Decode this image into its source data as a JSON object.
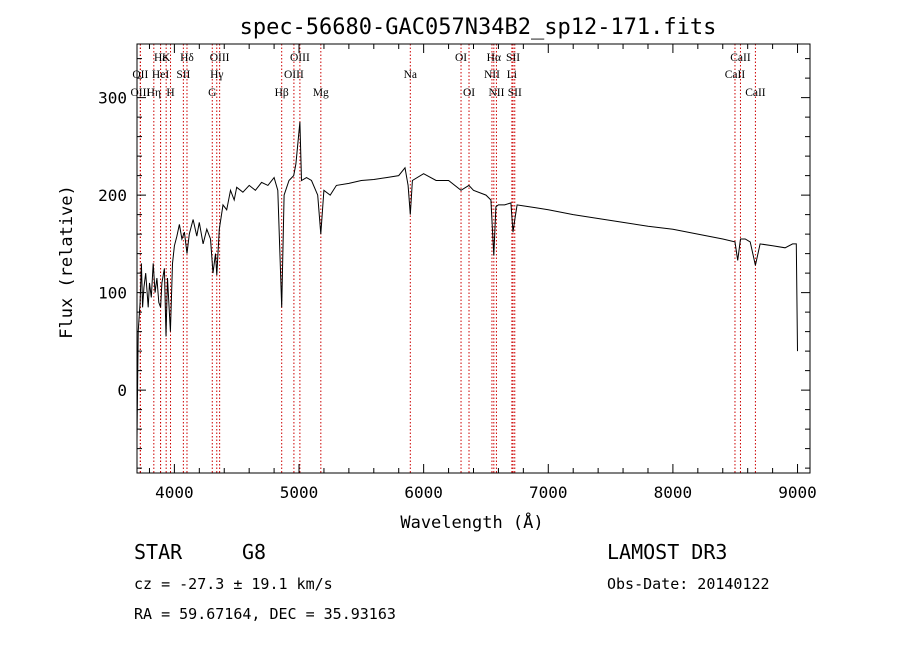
{
  "chart_data": {
    "type": "line",
    "title": "spec-56680-GAC057N34B2_sp12-171.fits",
    "xlabel": "Wavelength (Å)",
    "ylabel": "Flux (relative)",
    "xlim": [
      3700,
      9100
    ],
    "ylim": [
      -85,
      355
    ],
    "x_ticks": [
      4000,
      5000,
      6000,
      7000,
      8000,
      9000
    ],
    "x_tick_labels": [
      "4000",
      "5000",
      "6000",
      "7000",
      "8000",
      "9000"
    ],
    "y_ticks": [
      0,
      100,
      200,
      300
    ],
    "y_tick_labels": [
      "0",
      "100",
      "200",
      "300"
    ],
    "line_color": "#cc0000",
    "spectrum": [
      [
        3700,
        -50
      ],
      [
        3710,
        60
      ],
      [
        3725,
        90
      ],
      [
        3735,
        130
      ],
      [
        3745,
        85
      ],
      [
        3755,
        105
      ],
      [
        3770,
        120
      ],
      [
        3790,
        85
      ],
      [
        3800,
        110
      ],
      [
        3815,
        95
      ],
      [
        3830,
        130
      ],
      [
        3845,
        100
      ],
      [
        3860,
        115
      ],
      [
        3875,
        90
      ],
      [
        3889,
        85
      ],
      [
        3900,
        110
      ],
      [
        3920,
        125
      ],
      [
        3933,
        55
      ],
      [
        3945,
        115
      ],
      [
        3968,
        60
      ],
      [
        3985,
        130
      ],
      [
        4000,
        148
      ],
      [
        4020,
        158
      ],
      [
        4040,
        170
      ],
      [
        4060,
        155
      ],
      [
        4080,
        162
      ],
      [
        4101,
        140
      ],
      [
        4120,
        160
      ],
      [
        4150,
        175
      ],
      [
        4180,
        158
      ],
      [
        4200,
        172
      ],
      [
        4230,
        150
      ],
      [
        4260,
        165
      ],
      [
        4290,
        155
      ],
      [
        4310,
        120
      ],
      [
        4330,
        140
      ],
      [
        4340,
        118
      ],
      [
        4360,
        165
      ],
      [
        4390,
        190
      ],
      [
        4420,
        185
      ],
      [
        4450,
        205
      ],
      [
        4480,
        195
      ],
      [
        4500,
        208
      ],
      [
        4550,
        203
      ],
      [
        4600,
        210
      ],
      [
        4650,
        205
      ],
      [
        4700,
        213
      ],
      [
        4750,
        210
      ],
      [
        4800,
        218
      ],
      [
        4830,
        205
      ],
      [
        4861,
        85
      ],
      [
        4880,
        200
      ],
      [
        4920,
        215
      ],
      [
        4957,
        220
      ],
      [
        4975,
        232
      ],
      [
        5007,
        275
      ],
      [
        5020,
        215
      ],
      [
        5060,
        218
      ],
      [
        5100,
        215
      ],
      [
        5150,
        200
      ],
      [
        5175,
        160
      ],
      [
        5200,
        205
      ],
      [
        5250,
        200
      ],
      [
        5300,
        210
      ],
      [
        5400,
        212
      ],
      [
        5500,
        215
      ],
      [
        5600,
        216
      ],
      [
        5700,
        218
      ],
      [
        5800,
        220
      ],
      [
        5850,
        228
      ],
      [
        5875,
        210
      ],
      [
        5893,
        180
      ],
      [
        5910,
        215
      ],
      [
        6000,
        222
      ],
      [
        6100,
        215
      ],
      [
        6200,
        215
      ],
      [
        6300,
        205
      ],
      [
        6363,
        210
      ],
      [
        6400,
        205
      ],
      [
        6500,
        200
      ],
      [
        6540,
        195
      ],
      [
        6563,
        138
      ],
      [
        6580,
        188
      ],
      [
        6600,
        190
      ],
      [
        6650,
        190
      ],
      [
        6700,
        192
      ],
      [
        6717,
        162
      ],
      [
        6731,
        175
      ],
      [
        6750,
        190
      ],
      [
        6800,
        189
      ],
      [
        6900,
        187
      ],
      [
        7000,
        185
      ],
      [
        7200,
        180
      ],
      [
        7400,
        176
      ],
      [
        7600,
        172
      ],
      [
        7800,
        168
      ],
      [
        8000,
        165
      ],
      [
        8200,
        160
      ],
      [
        8400,
        155
      ],
      [
        8498,
        152
      ],
      [
        8520,
        133
      ],
      [
        8542,
        155
      ],
      [
        8580,
        155
      ],
      [
        8620,
        152
      ],
      [
        8662,
        128
      ],
      [
        8700,
        150
      ],
      [
        8800,
        148
      ],
      [
        8900,
        146
      ],
      [
        8960,
        150
      ],
      [
        8990,
        150
      ],
      [
        9000,
        40
      ]
    ],
    "lines": [
      {
        "name": "Hε",
        "wavelength": 3889,
        "label_row": 1
      },
      {
        "name": "HeI",
        "wavelength": 3889,
        "label_row": 2
      },
      {
        "name": "OII",
        "wavelength": 3727,
        "label_row": 2
      },
      {
        "name": "OIII",
        "wavelength": 3727,
        "label_row": 3
      },
      {
        "name": "Hη",
        "wavelength": 3835,
        "label_row": 3
      },
      {
        "name": "K",
        "wavelength": 3934,
        "label_row": 1
      },
      {
        "name": "H",
        "wavelength": 3969,
        "label_row": 3
      },
      {
        "name": "Hδ",
        "wavelength": 4101,
        "label_row": 1
      },
      {
        "name": "SII",
        "wavelength": 4072,
        "label_row": 2
      },
      {
        "name": "OIII",
        "wavelength": 4363,
        "label_row": 1
      },
      {
        "name": "Hγ",
        "wavelength": 4340,
        "label_row": 2
      },
      {
        "name": "G",
        "wavelength": 4304,
        "label_row": 3
      },
      {
        "name": "Hβ",
        "wavelength": 4861,
        "label_row": 3
      },
      {
        "name": "OIII",
        "wavelength": 5007,
        "label_row": 1
      },
      {
        "name": "OIII",
        "wavelength": 4959,
        "label_row": 2
      },
      {
        "name": "Mg",
        "wavelength": 5175,
        "label_row": 3
      },
      {
        "name": "Na",
        "wavelength": 5893,
        "label_row": 2
      },
      {
        "name": "OI",
        "wavelength": 6300,
        "label_row": 1
      },
      {
        "name": "OI",
        "wavelength": 6364,
        "label_row": 3
      },
      {
        "name": "Hα",
        "wavelength": 6563,
        "label_row": 1
      },
      {
        "name": "NII",
        "wavelength": 6548,
        "label_row": 2
      },
      {
        "name": "NII",
        "wavelength": 6584,
        "label_row": 3
      },
      {
        "name": "SII",
        "wavelength": 6717,
        "label_row": 1
      },
      {
        "name": "Li",
        "wavelength": 6708,
        "label_row": 2
      },
      {
        "name": "SII",
        "wavelength": 6731,
        "label_row": 3
      },
      {
        "name": "CaII",
        "wavelength": 8542,
        "label_row": 1
      },
      {
        "name": "CaII",
        "wavelength": 8498,
        "label_row": 2
      },
      {
        "name": "CaII",
        "wavelength": 8662,
        "label_row": 3
      }
    ]
  },
  "info": {
    "class": "STAR",
    "subclass": "G8",
    "survey": "LAMOST DR3",
    "redshift": "cz = -27.3 ± 19.1 km/s",
    "obs_date": "Obs-Date: 20140122",
    "coords": "RA =  59.67164, DEC =  35.93163"
  }
}
